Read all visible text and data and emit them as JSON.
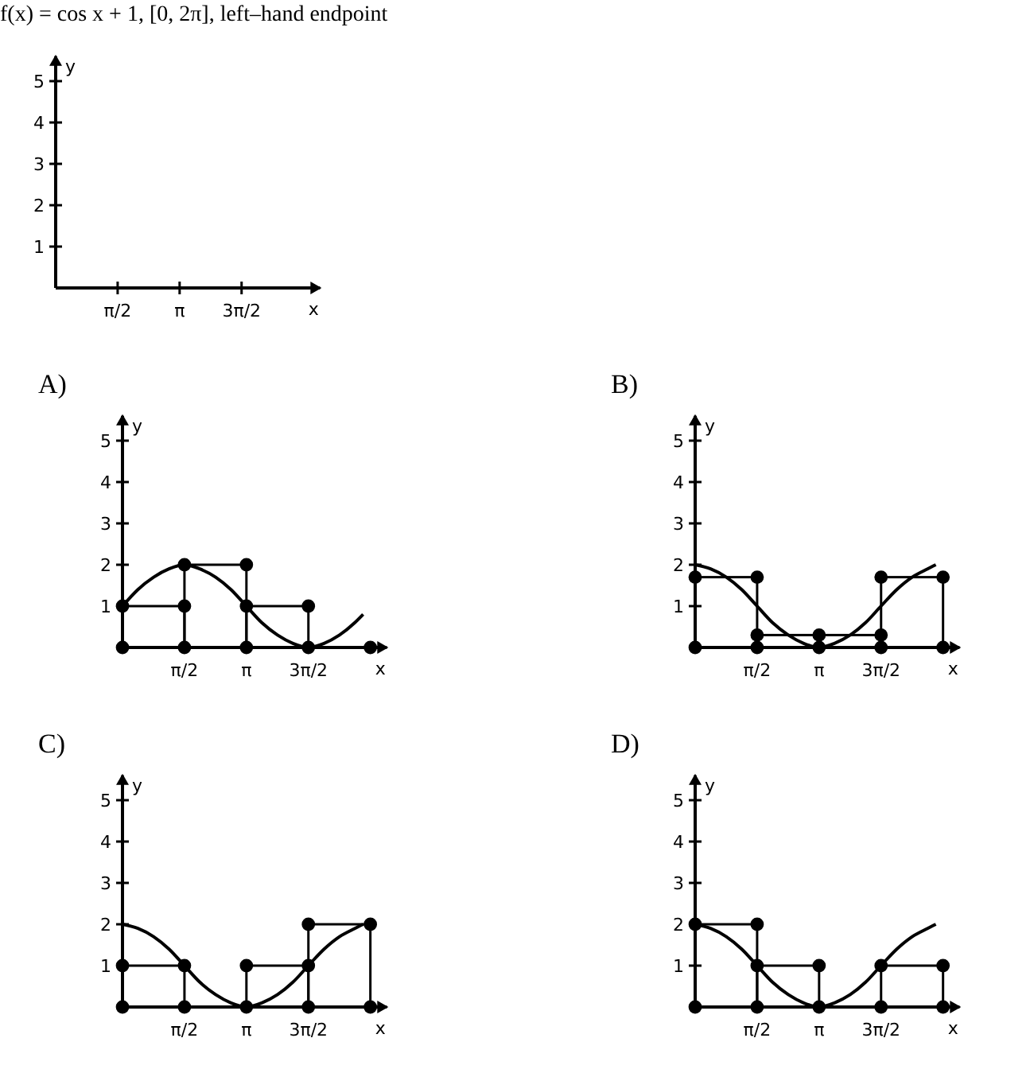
{
  "chart_data": [
    {
      "type": "line",
      "title": "f(x) = cos x + 1, [0, 2π], left–hand endpoint",
      "xlabel": "x",
      "ylabel": "y",
      "xlim": [
        0,
        6.7
      ],
      "ylim": [
        0,
        5.6
      ],
      "xticks": [
        {
          "value": 1.5708,
          "label": "π/2"
        },
        {
          "value": 3.1416,
          "label": "π"
        },
        {
          "value": 4.7124,
          "label": "3π/2"
        }
      ],
      "yticks": [
        1,
        2,
        3,
        4,
        5
      ]
    },
    {
      "type": "line",
      "title": "A)",
      "xlabel": "x",
      "ylabel": "y",
      "xlim": [
        0,
        6.7
      ],
      "ylim": [
        0,
        5.6
      ],
      "xticks": [
        {
          "value": 1.5708,
          "label": "π/2"
        },
        {
          "value": 3.1416,
          "label": "π"
        },
        {
          "value": 4.7124,
          "label": "3π/2"
        }
      ],
      "yticks": [
        1,
        2,
        3,
        4,
        5
      ],
      "series": [
        {
          "color": "#000000",
          "x": [
            0,
            0.39,
            0.79,
            1.18,
            1.57,
            1.96,
            2.36,
            2.75,
            3.14,
            3.53,
            3.93,
            4.32,
            4.71,
            5.11,
            5.5,
            5.89,
            6.1
          ],
          "values": [
            1,
            1.4,
            1.7,
            1.9,
            2,
            1.9,
            1.7,
            1.4,
            1,
            0.6,
            0.3,
            0.1,
            0,
            0.1,
            0.3,
            0.6,
            0.8
          ]
        },
        {
          "type": "bar",
          "color": "#000000",
          "x": [
            0.7854,
            2.3562,
            3.927,
            5.4978
          ],
          "values": [
            1,
            2,
            1,
            0
          ]
        },
        {
          "type": "scatter",
          "marker": "circle",
          "color": "#000000",
          "x": [
            0,
            0,
            1.5708,
            1.5708,
            1.5708,
            3.1416,
            3.1416,
            3.1416,
            4.7124,
            4.7124,
            6.2832
          ],
          "values": [
            0,
            1,
            0,
            1,
            2,
            0,
            1,
            2,
            0,
            1,
            0
          ]
        }
      ]
    },
    {
      "type": "line",
      "title": "B)",
      "xlabel": "x",
      "ylabel": "y",
      "xlim": [
        0,
        6.7
      ],
      "ylim": [
        0,
        5.6
      ],
      "xticks": [
        {
          "value": 1.5708,
          "label": "π/2"
        },
        {
          "value": 3.1416,
          "label": "π"
        },
        {
          "value": 4.7124,
          "label": "3π/2"
        }
      ],
      "yticks": [
        1,
        2,
        3,
        4,
        5
      ],
      "series": [
        {
          "color": "#000000",
          "x": [
            0,
            0.39,
            0.79,
            1.18,
            1.57,
            1.96,
            2.36,
            2.75,
            3.14,
            3.53,
            3.93,
            4.32,
            4.71,
            5.11,
            5.5,
            5.89,
            6.1
          ],
          "values": [
            2,
            1.9,
            1.7,
            1.4,
            1,
            0.6,
            0.3,
            0.1,
            0,
            0.1,
            0.3,
            0.6,
            1,
            1.4,
            1.7,
            1.9,
            2
          ]
        },
        {
          "type": "bar",
          "color": "#000000",
          "x": [
            0.7854,
            2.3562,
            3.927,
            5.4978
          ],
          "values": [
            1.7,
            0.3,
            0.3,
            1.7
          ]
        },
        {
          "type": "scatter",
          "marker": "circle",
          "color": "#000000",
          "x": [
            0,
            0,
            1.5708,
            1.5708,
            1.5708,
            3.1416,
            3.1416,
            4.7124,
            4.7124,
            4.7124,
            6.2832,
            6.2832
          ],
          "values": [
            0,
            1.7,
            0,
            0.3,
            1.7,
            0,
            0.3,
            0,
            0.3,
            1.7,
            0,
            1.7
          ]
        }
      ]
    },
    {
      "type": "line",
      "title": "C)",
      "xlabel": "x",
      "ylabel": "y",
      "xlim": [
        0,
        6.7
      ],
      "ylim": [
        0,
        5.6
      ],
      "xticks": [
        {
          "value": 1.5708,
          "label": "π/2"
        },
        {
          "value": 3.1416,
          "label": "π"
        },
        {
          "value": 4.7124,
          "label": "3π/2"
        }
      ],
      "yticks": [
        1,
        2,
        3,
        4,
        5
      ],
      "series": [
        {
          "color": "#000000",
          "x": [
            0,
            0.39,
            0.79,
            1.18,
            1.57,
            1.96,
            2.36,
            2.75,
            3.14,
            3.53,
            3.93,
            4.32,
            4.71,
            5.11,
            5.5,
            5.89,
            6.1
          ],
          "values": [
            2,
            1.9,
            1.7,
            1.4,
            1,
            0.6,
            0.3,
            0.1,
            0,
            0.1,
            0.3,
            0.6,
            1,
            1.4,
            1.7,
            1.9,
            2
          ]
        },
        {
          "type": "bar",
          "color": "#000000",
          "x": [
            0.7854,
            2.3562,
            3.927,
            5.4978
          ],
          "values": [
            1,
            0,
            1,
            2
          ]
        },
        {
          "type": "scatter",
          "marker": "circle",
          "color": "#000000",
          "x": [
            0,
            0,
            1.5708,
            1.5708,
            3.1416,
            3.1416,
            4.7124,
            4.7124,
            4.7124,
            6.2832,
            6.2832
          ],
          "values": [
            0,
            1,
            0,
            1,
            0,
            1,
            0,
            1,
            2,
            0,
            2
          ]
        }
      ]
    },
    {
      "type": "line",
      "title": "D)",
      "xlabel": "x",
      "ylabel": "y",
      "xlim": [
        0,
        6.7
      ],
      "ylim": [
        0,
        5.6
      ],
      "xticks": [
        {
          "value": 1.5708,
          "label": "π/2"
        },
        {
          "value": 3.1416,
          "label": "π"
        },
        {
          "value": 4.7124,
          "label": "3π/2"
        }
      ],
      "yticks": [
        1,
        2,
        3,
        4,
        5
      ],
      "series": [
        {
          "color": "#000000",
          "x": [
            0,
            0.39,
            0.79,
            1.18,
            1.57,
            1.96,
            2.36,
            2.75,
            3.14,
            3.53,
            3.93,
            4.32,
            4.71,
            5.11,
            5.5,
            5.89,
            6.1
          ],
          "values": [
            2,
            1.9,
            1.7,
            1.4,
            1,
            0.6,
            0.3,
            0.1,
            0,
            0.1,
            0.3,
            0.6,
            1,
            1.4,
            1.7,
            1.9,
            2
          ]
        },
        {
          "type": "bar",
          "color": "#000000",
          "x": [
            0.7854,
            2.3562,
            3.927,
            5.4978
          ],
          "values": [
            2,
            1,
            0,
            1
          ]
        },
        {
          "type": "scatter",
          "marker": "circle",
          "color": "#000000",
          "x": [
            0,
            0,
            1.5708,
            1.5708,
            1.5708,
            3.1416,
            3.1416,
            4.7124,
            4.7124,
            6.2832,
            6.2832
          ],
          "values": [
            0,
            2,
            0,
            1,
            2,
            0,
            1,
            0,
            1,
            0,
            1
          ]
        }
      ]
    }
  ]
}
